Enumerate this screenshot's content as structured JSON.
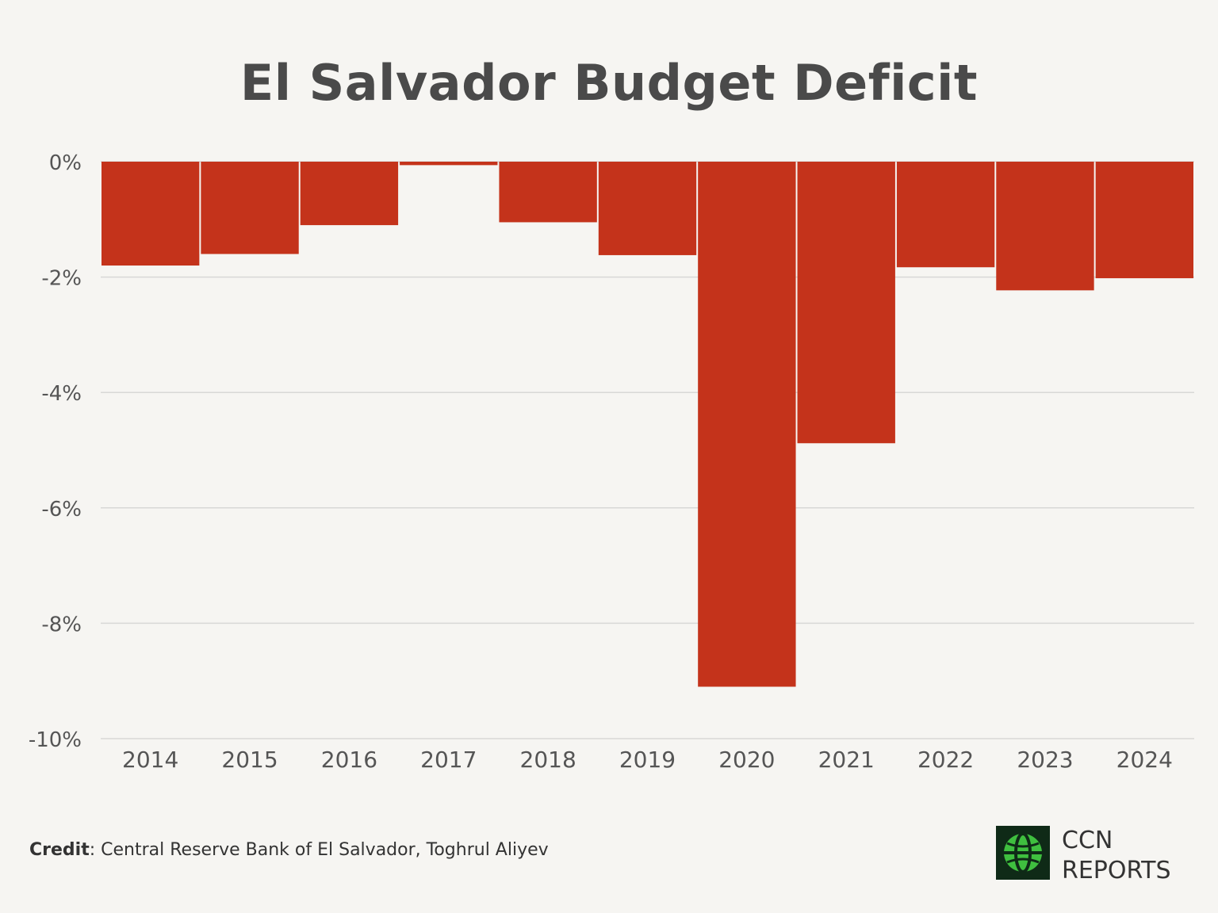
{
  "chart_data": {
    "type": "bar",
    "title": "El Salvador Budget Deficit",
    "categories": [
      "2014",
      "2015",
      "2016",
      "2017",
      "2018",
      "2019",
      "2020",
      "2021",
      "2022",
      "2023",
      "2024"
    ],
    "values": [
      -1.8,
      -1.6,
      -1.1,
      -0.06,
      -1.05,
      -1.62,
      -9.1,
      -4.88,
      -1.83,
      -2.23,
      -2.02
    ],
    "yticks": [
      "0%",
      "-2%",
      "-4%",
      "-6%",
      "-8%",
      "-10%"
    ],
    "ytick_values": [
      0,
      -2,
      -4,
      -6,
      -8,
      -10
    ],
    "ylim": [
      -10,
      0
    ],
    "xlabel": "",
    "ylabel": "",
    "grid": true,
    "bar_color": "#c4331b",
    "grid_color": "#d8d8d6"
  },
  "credit": {
    "label": "Credit",
    "text": ": Central Reserve Bank of El Salvador, Toghrul Aliyev"
  },
  "logo": {
    "icon": "globe-icon",
    "line1": "CCN",
    "line2": "REPORTS"
  }
}
